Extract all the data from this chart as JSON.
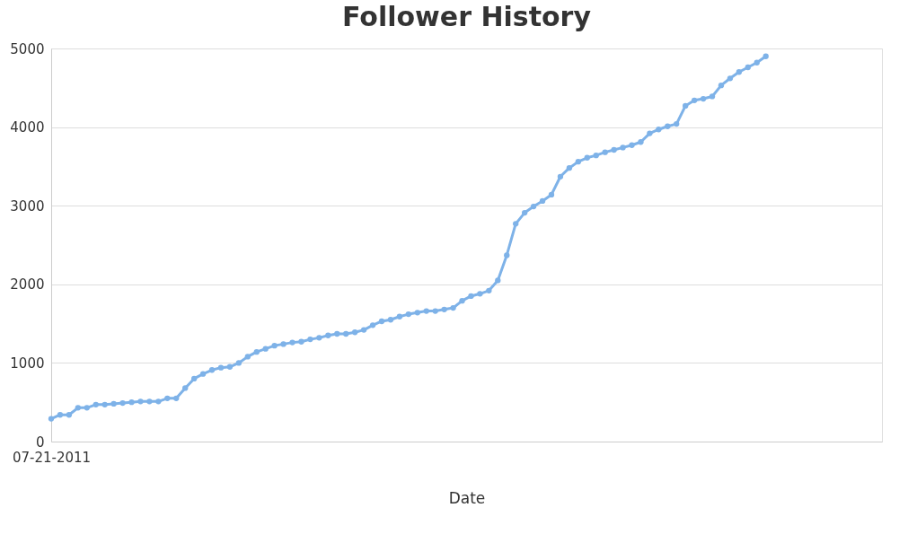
{
  "chart_data": {
    "type": "line",
    "title": "Follower History",
    "xlabel": "Date",
    "categories": [
      "07-21-2011",
      null,
      null,
      null,
      null,
      null,
      null,
      null,
      null,
      null,
      null,
      null,
      null,
      null,
      null,
      null,
      null,
      null,
      null,
      null,
      null,
      null,
      null,
      null,
      null,
      null,
      null,
      null,
      null,
      null,
      null,
      null,
      null,
      null,
      null,
      null,
      null,
      null,
      null,
      null,
      null,
      null,
      null,
      null,
      null,
      null,
      null,
      null,
      null,
      null,
      null,
      null,
      null,
      null,
      null,
      null,
      null,
      null,
      null,
      null,
      null,
      null,
      null,
      null,
      null,
      null,
      null,
      null,
      null,
      null,
      null,
      null,
      null,
      null,
      null,
      null,
      null,
      null,
      null,
      null,
      null,
      null,
      null,
      null,
      null,
      null,
      null,
      null,
      null,
      null,
      null,
      null,
      null,
      null
    ],
    "series": [
      {
        "color": "#7eb2e8",
        "values": [
          290,
          340,
          340,
          430,
          430,
          470,
          470,
          480,
          490,
          500,
          510,
          510,
          510,
          550,
          550,
          680,
          800,
          860,
          910,
          940,
          950,
          1000,
          1080,
          1140,
          1180,
          1220,
          1240,
          1260,
          1270,
          1300,
          1320,
          1350,
          1370,
          1370,
          1390,
          1420,
          1480,
          1530,
          1550,
          1590,
          1620,
          1640,
          1660,
          1660,
          1680,
          1700,
          1790,
          1850,
          1880,
          1920,
          2050,
          2370,
          2770,
          2910,
          2990,
          3060,
          3140,
          3370,
          3480,
          3560,
          3610,
          3640,
          3680,
          3710,
          3740,
          3770,
          3810,
          3920,
          3970,
          4010,
          4040,
          4270,
          4340,
          4360,
          4390,
          4530,
          4620,
          4700,
          4760,
          4820,
          4900,
          null,
          null,
          null,
          null,
          null,
          null,
          null,
          null,
          null,
          null,
          null,
          null,
          null
        ]
      }
    ],
    "ylim": [
      0,
      5000
    ],
    "yticks": [
      0,
      1000,
      2000,
      3000,
      4000,
      5000
    ],
    "grid": "y",
    "legend": false,
    "marker": "circle",
    "line_style": "solid"
  }
}
